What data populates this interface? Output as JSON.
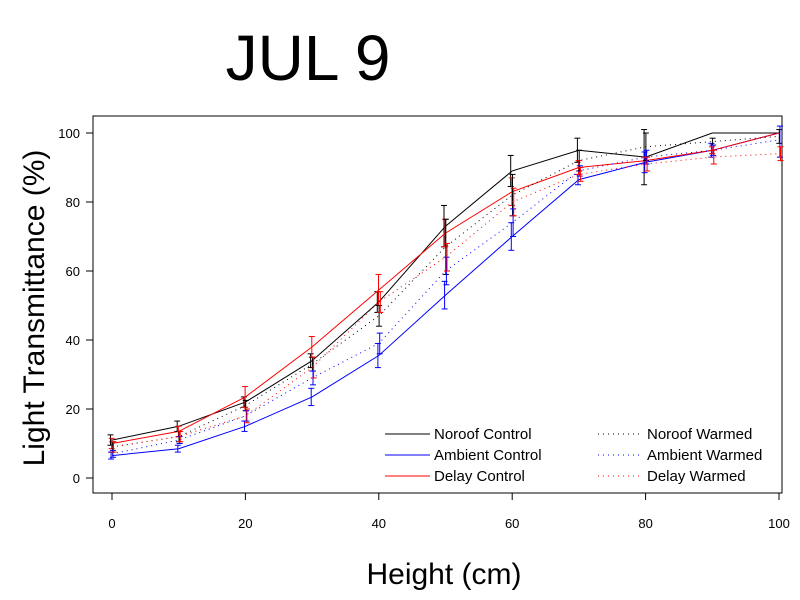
{
  "chart_data": {
    "type": "line",
    "title": "JUL   9",
    "xlabel": "Height  (cm)",
    "ylabel": "Light  Transmittance  (%)",
    "xlim": [
      0,
      100
    ],
    "ylim": [
      0,
      100
    ],
    "x_ticks": [
      0,
      20,
      40,
      60,
      80,
      100
    ],
    "y_ticks": [
      0,
      20,
      40,
      60,
      80,
      100
    ],
    "x": [
      0,
      10,
      20,
      30,
      40,
      50,
      60,
      70,
      80,
      90,
      100
    ],
    "series": [
      {
        "name": "Noroof Control",
        "color": "#000000",
        "style": "solid",
        "values": [
          11,
          15,
          22,
          34,
          51,
          73,
          89,
          95,
          93,
          100,
          100
        ],
        "errors": [
          1.5,
          1.5,
          1.5,
          2,
          3,
          6,
          4.5,
          3.5,
          8,
          0,
          0
        ]
      },
      {
        "name": "Ambient Control",
        "color": "#0000ff",
        "style": "solid",
        "values": [
          6.5,
          8.5,
          15,
          23.5,
          35.5,
          53,
          70,
          86.5,
          91.5,
          95,
          100
        ],
        "errors": [
          1,
          1,
          1.5,
          2.5,
          3.5,
          4,
          4,
          1.5,
          3,
          2,
          0
        ]
      },
      {
        "name": "Delay Control",
        "color": "#ff0000",
        "style": "solid",
        "values": [
          10,
          13.5,
          23.5,
          38,
          54.5,
          71,
          83,
          90,
          92,
          95,
          100
        ],
        "errors": [
          1.5,
          1.5,
          3,
          3,
          4.5,
          4,
          4,
          2,
          1,
          1,
          0
        ]
      },
      {
        "name": "Noroof Warmed",
        "color": "#000000",
        "style": "dotted",
        "values": [
          9,
          12,
          21,
          33,
          47,
          67,
          82,
          92,
          96,
          97.5,
          99
        ],
        "errors": [
          1.5,
          1.5,
          1.5,
          2,
          3,
          8,
          6,
          3,
          4,
          1,
          2
        ]
      },
      {
        "name": "Ambient Warmed",
        "color": "#0000ff",
        "style": "dotted",
        "values": [
          7,
          11,
          18,
          29,
          39,
          60,
          74,
          89,
          93,
          95,
          98
        ],
        "errors": [
          1,
          1,
          1.5,
          2,
          3,
          4,
          4,
          1.5,
          2,
          1.5,
          5
        ]
      },
      {
        "name": "Delay Warmed",
        "color": "#ff0000",
        "style": "dotted",
        "values": [
          9,
          12,
          18,
          32,
          51,
          64,
          80,
          88,
          91,
          93,
          94
        ],
        "errors": [
          1.5,
          1.5,
          2,
          3,
          3,
          4,
          4,
          2,
          2,
          2,
          2
        ]
      }
    ],
    "legend_position": "bottom-right",
    "grid": false
  }
}
